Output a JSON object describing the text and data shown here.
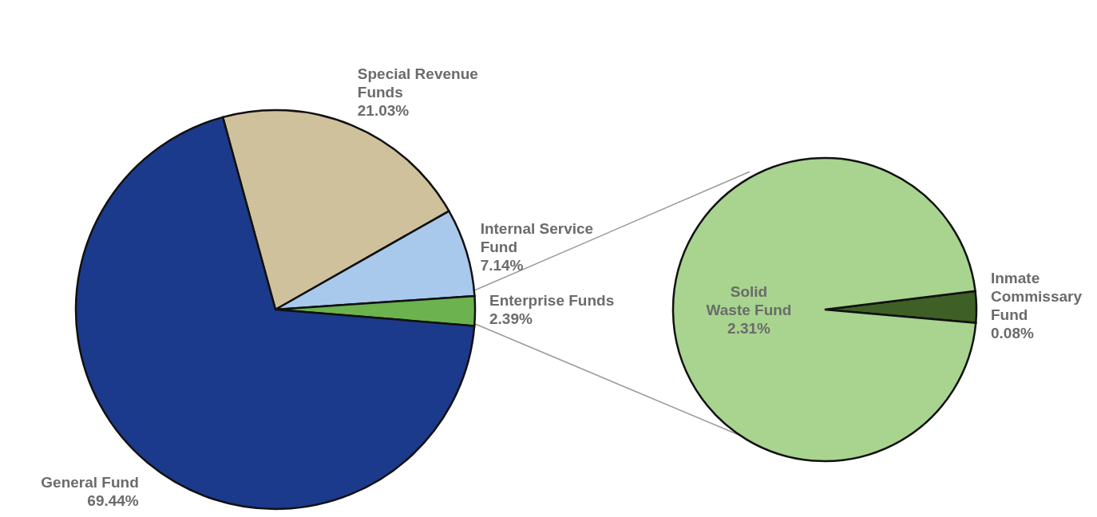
{
  "chart_data": [
    {
      "type": "pie",
      "categories": [
        "Special Revenue Funds",
        "Internal Service Fund",
        "Enterprise Funds",
        "General Fund"
      ],
      "values": [
        21.03,
        7.14,
        2.39,
        69.44
      ],
      "value_labels": [
        "21.03%",
        "7.14%",
        "2.39%",
        "69.44%"
      ],
      "colors": [
        "#cfc19b",
        "#a9c9ec",
        "#6cb24e",
        "#1c3a8c"
      ]
    },
    {
      "type": "pie",
      "categories": [
        "Inmate Commissary Fund",
        "Solid Waste Fund"
      ],
      "values": [
        0.08,
        2.31
      ],
      "value_labels": [
        "0.08%",
        "2.31%"
      ],
      "colors": [
        "#3e5f26",
        "#a8d48f"
      ]
    }
  ]
}
